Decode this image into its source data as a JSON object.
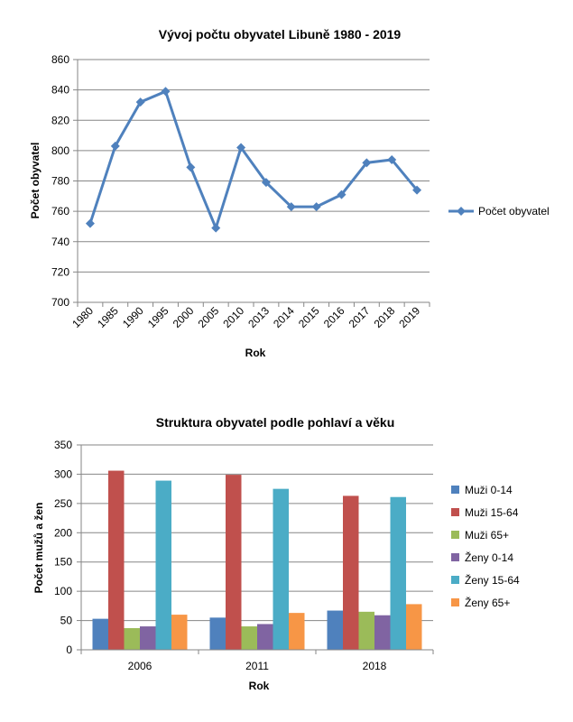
{
  "chart_data": [
    {
      "type": "line",
      "title": "Vývoj počtu obyvatel Libuně 1980 - 2019",
      "xlabel": "Rok",
      "ylabel": "Počet obyvatel",
      "ylim": [
        700,
        860
      ],
      "yticks": [
        700,
        720,
        740,
        760,
        780,
        800,
        820,
        840,
        860
      ],
      "grid": true,
      "legend_position": "right",
      "categories": [
        "1980",
        "1985",
        "1990",
        "1995",
        "2000",
        "2005",
        "2010",
        "2013",
        "2014",
        "2015",
        "2016",
        "2017",
        "2018",
        "2019"
      ],
      "series": [
        {
          "name": "Počet obyvatel",
          "color": "#4f81bd",
          "marker": "diamond",
          "values": [
            752,
            803,
            832,
            839,
            789,
            749,
            802,
            779,
            763,
            763,
            771,
            792,
            794,
            774
          ]
        }
      ]
    },
    {
      "type": "bar",
      "title": "Struktura obyvatel podle pohlaví a věku",
      "xlabel": "Rok",
      "ylabel": "Počet mužů a žen",
      "ylim": [
        0,
        350
      ],
      "yticks": [
        0,
        50,
        100,
        150,
        200,
        250,
        300,
        350
      ],
      "grid": true,
      "legend_position": "right",
      "categories": [
        "2006",
        "2011",
        "2018"
      ],
      "series": [
        {
          "name": "Muži 0-14",
          "color": "#4f81bd",
          "values": [
            53,
            55,
            67
          ]
        },
        {
          "name": "Muži 15-64",
          "color": "#c0504d",
          "values": [
            306,
            299,
            263
          ]
        },
        {
          "name": "Muži 65+",
          "color": "#9bbb59",
          "values": [
            37,
            40,
            65
          ]
        },
        {
          "name": "Ženy 0-14",
          "color": "#8064a2",
          "values": [
            40,
            44,
            59
          ]
        },
        {
          "name": "Ženy 15-64",
          "color": "#4bacc6",
          "values": [
            289,
            275,
            261
          ]
        },
        {
          "name": "Ženy 65+",
          "color": "#f79646",
          "values": [
            60,
            63,
            78
          ]
        }
      ]
    }
  ]
}
